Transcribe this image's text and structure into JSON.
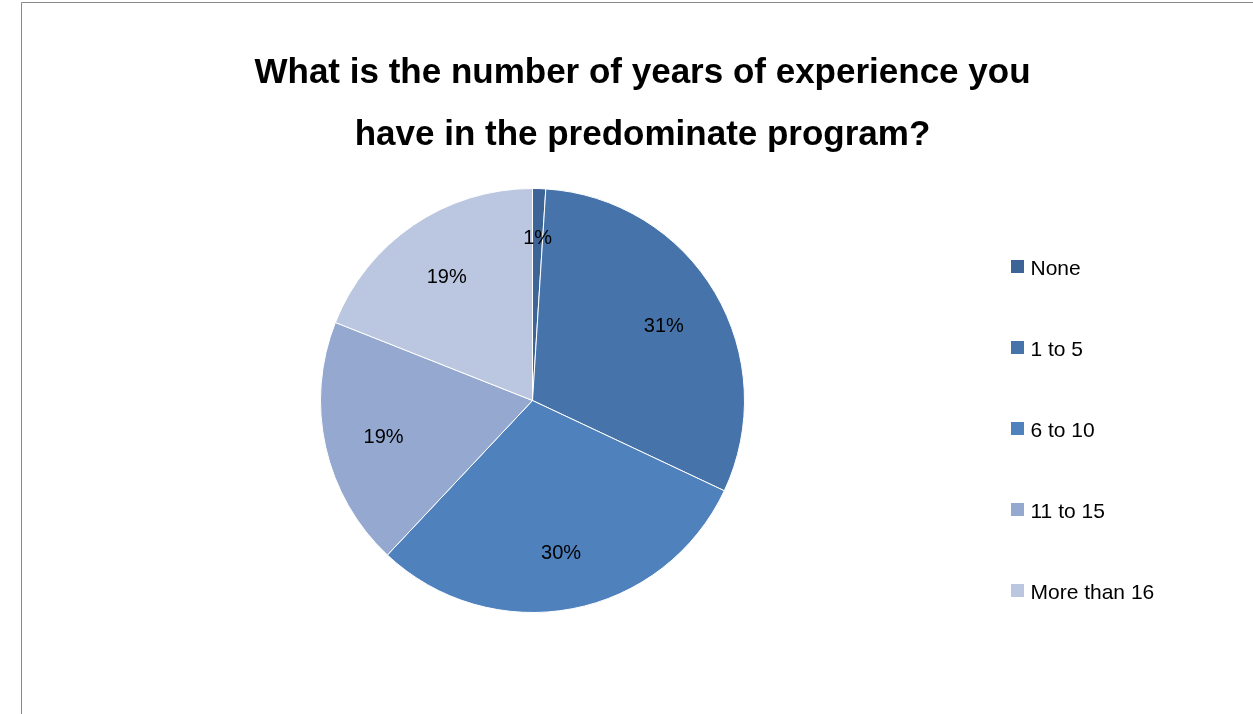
{
  "chart_data": {
    "type": "pie",
    "title": "What is the number of years of experience you have in the predominate program?",
    "categories": [
      "None",
      "1 to 5",
      "6 to 10",
      "11 to 15",
      "More than 16"
    ],
    "values": [
      1,
      31,
      30,
      19,
      19
    ],
    "colors": [
      "#3c6496",
      "#4674aa",
      "#4f81bd",
      "#94a8d0",
      "#bbc7e0"
    ],
    "value_labels": [
      "1%",
      "31%",
      "30%",
      "19%",
      "19%"
    ],
    "legend": "right"
  }
}
